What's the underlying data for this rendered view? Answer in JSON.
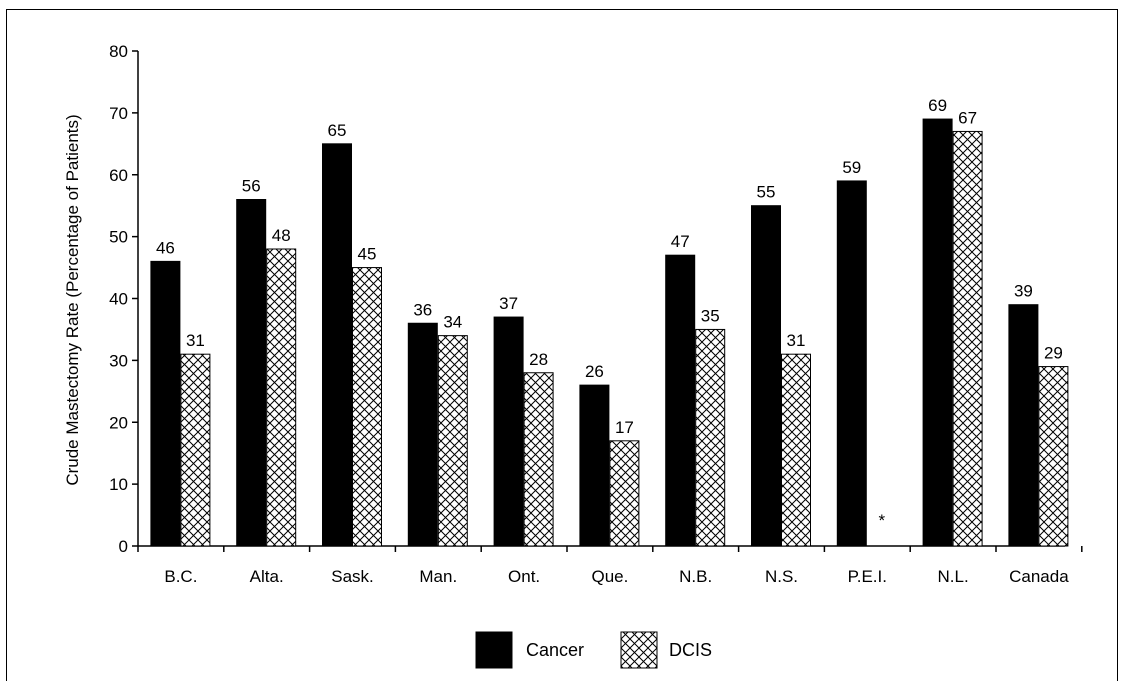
{
  "chart_data": {
    "type": "bar",
    "title": "",
    "xlabel": "",
    "ylabel": "Crude Mastectomy Rate (Percentage of Patients)",
    "ylim": [
      0,
      80
    ],
    "yticks": [
      0,
      10,
      20,
      30,
      40,
      50,
      60,
      70,
      80
    ],
    "grid": false,
    "legend_position": "bottom",
    "categories": [
      "B.C.",
      "Alta.",
      "Sask.",
      "Man.",
      "Ont.",
      "Que.",
      "N.B.",
      "N.S.",
      "P.E.I.",
      "N.L.",
      "Canada"
    ],
    "series": [
      {
        "name": "Cancer",
        "values": [
          46,
          56,
          65,
          36,
          37,
          26,
          47,
          55,
          59,
          69,
          39
        ],
        "labels": [
          "46",
          "56",
          "65",
          "36",
          "37",
          "26",
          "47",
          "55",
          "59",
          "69",
          "39"
        ],
        "fill": "solid",
        "color": "#000000"
      },
      {
        "name": "DCIS",
        "values": [
          31,
          48,
          45,
          34,
          28,
          17,
          35,
          31,
          null,
          67,
          29
        ],
        "labels": [
          "31",
          "48",
          "45",
          "34",
          "28",
          "17",
          "35",
          "31",
          "*",
          "67",
          "29"
        ],
        "fill": "crosshatch",
        "color": "#000000"
      }
    ]
  }
}
